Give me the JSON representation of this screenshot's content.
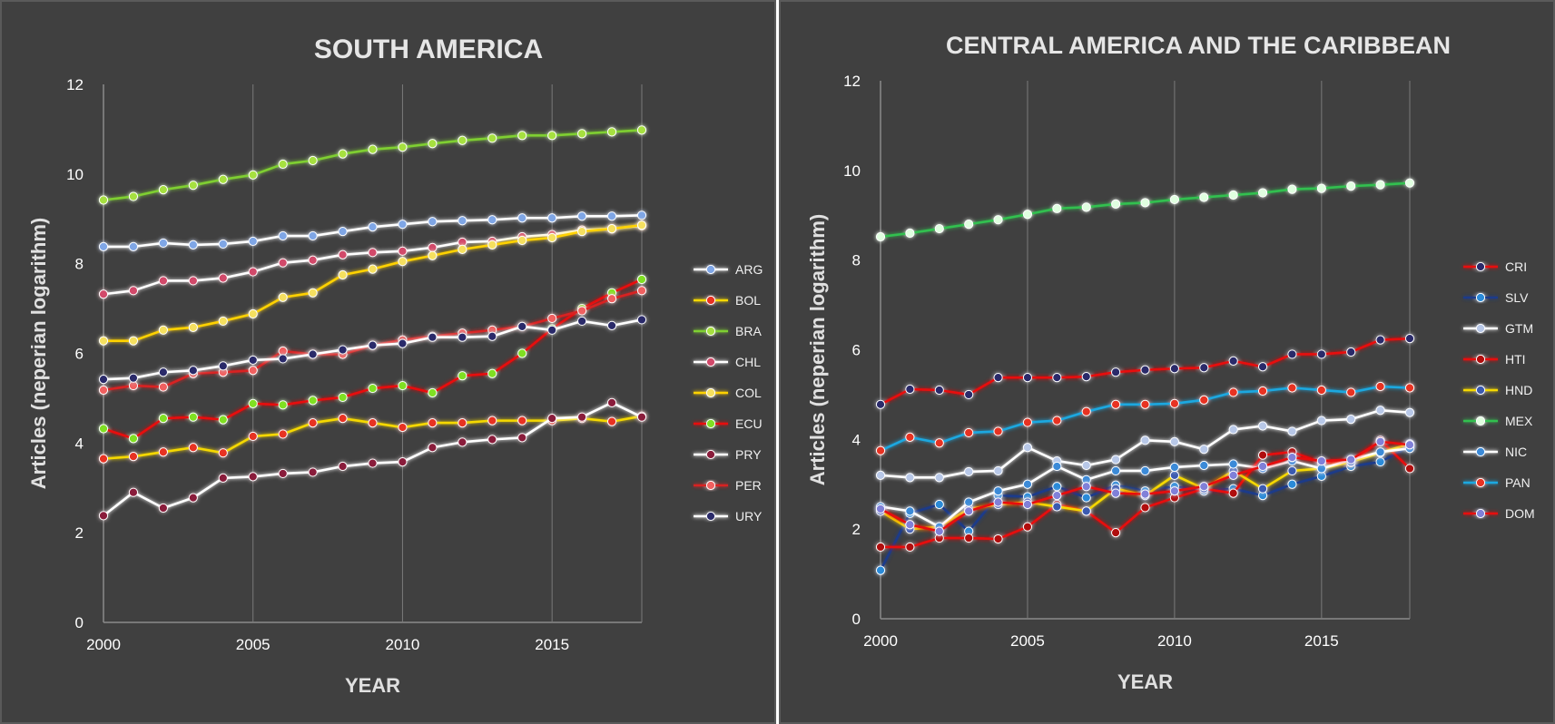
{
  "chart_data": [
    {
      "type": "line",
      "title": "SOUTH AMERICA",
      "xlabel": "YEAR",
      "ylabel": "Articles (neperian logarithm)",
      "x": [
        2000,
        2001,
        2002,
        2003,
        2004,
        2005,
        2006,
        2007,
        2008,
        2009,
        2010,
        2011,
        2012,
        2013,
        2014,
        2015,
        2016,
        2017,
        2018
      ],
      "xticks": [
        "2000",
        "2005",
        "2010",
        "2015"
      ],
      "yticks": [
        "0",
        "2",
        "4",
        "6",
        "8",
        "10",
        "12"
      ],
      "xlim": [
        2000,
        2018
      ],
      "ylim": [
        0,
        12
      ],
      "grid": "vertical",
      "legend": "right",
      "series": [
        {
          "name": "ARG",
          "line_color": "#ffffff",
          "marker_color": "#7fa6e6",
          "values": [
            8.38,
            8.38,
            8.46,
            8.42,
            8.44,
            8.5,
            8.62,
            8.62,
            8.72,
            8.82,
            8.88,
            8.94,
            8.96,
            8.98,
            9.02,
            9.02,
            9.06,
            9.06,
            9.08
          ]
        },
        {
          "name": "BOL",
          "line_color": "#f5d800",
          "marker_color": "#e83020",
          "values": [
            3.65,
            3.7,
            3.8,
            3.9,
            3.78,
            4.15,
            4.2,
            4.45,
            4.55,
            4.45,
            4.35,
            4.45,
            4.45,
            4.5,
            4.5,
            4.5,
            4.55,
            4.48,
            4.6
          ]
        },
        {
          "name": "BRA",
          "line_color": "#7fcf30",
          "marker_color": "#a6e040",
          "values": [
            9.42,
            9.5,
            9.65,
            9.75,
            9.88,
            9.98,
            10.22,
            10.3,
            10.45,
            10.55,
            10.6,
            10.68,
            10.75,
            10.8,
            10.86,
            10.86,
            10.9,
            10.94,
            10.98
          ]
        },
        {
          "name": "CHL",
          "line_color": "#ffffff",
          "marker_color": "#d24a6a",
          "values": [
            7.32,
            7.4,
            7.62,
            7.62,
            7.68,
            7.82,
            8.02,
            8.08,
            8.2,
            8.25,
            8.28,
            8.36,
            8.48,
            8.5,
            8.6,
            8.65,
            8.75,
            8.78,
            8.85
          ]
        },
        {
          "name": "COL",
          "line_color": "#ffd200",
          "marker_color": "#f5e060",
          "values": [
            6.28,
            6.28,
            6.52,
            6.58,
            6.72,
            6.88,
            7.25,
            7.35,
            7.75,
            7.88,
            8.05,
            8.18,
            8.32,
            8.42,
            8.52,
            8.58,
            8.72,
            8.78,
            8.86
          ]
        },
        {
          "name": "ECU",
          "line_color": "#e81010",
          "marker_color": "#7fe020",
          "values": [
            4.32,
            4.1,
            4.55,
            4.58,
            4.52,
            4.88,
            4.85,
            4.95,
            5.02,
            5.22,
            5.28,
            5.12,
            5.5,
            5.55,
            6.0,
            6.55,
            7.0,
            7.35,
            7.65
          ]
        },
        {
          "name": "PRY",
          "line_color": "#ffffff",
          "marker_color": "#8a1a3a",
          "values": [
            2.38,
            2.9,
            2.55,
            2.78,
            3.22,
            3.25,
            3.32,
            3.35,
            3.48,
            3.55,
            3.58,
            3.9,
            4.02,
            4.08,
            4.12,
            4.55,
            4.58,
            4.9,
            4.58
          ]
        },
        {
          "name": "PER",
          "line_color": "#d82020",
          "marker_color": "#f06060",
          "values": [
            5.18,
            5.28,
            5.25,
            5.55,
            5.58,
            5.62,
            6.05,
            5.98,
            5.98,
            6.18,
            6.3,
            6.38,
            6.45,
            6.52,
            6.6,
            6.78,
            6.95,
            7.22,
            7.4
          ]
        },
        {
          "name": "URY",
          "line_color": "#ffffff",
          "marker_color": "#2a2a6a",
          "values": [
            5.42,
            5.45,
            5.58,
            5.62,
            5.72,
            5.85,
            5.88,
            5.98,
            6.08,
            6.18,
            6.22,
            6.36,
            6.36,
            6.38,
            6.6,
            6.52,
            6.72,
            6.62,
            6.75
          ]
        }
      ]
    },
    {
      "type": "line",
      "title": "CENTRAL AMERICA AND THE CARIBBEAN",
      "xlabel": "YEAR",
      "ylabel": "Articles (neperian logarithm)",
      "x": [
        2000,
        2001,
        2002,
        2003,
        2004,
        2005,
        2006,
        2007,
        2008,
        2009,
        2010,
        2011,
        2012,
        2013,
        2014,
        2015,
        2016,
        2017,
        2018
      ],
      "xticks": [
        "2000",
        "2005",
        "2010",
        "2015"
      ],
      "yticks": [
        "0",
        "2",
        "4",
        "6",
        "8",
        "10",
        "12"
      ],
      "xlim": [
        2000,
        2018
      ],
      "ylim": [
        0,
        12
      ],
      "grid": "vertical",
      "legend": "right",
      "series": [
        {
          "name": "CRI",
          "line_color": "#e81010",
          "marker_color": "#2a2a6a",
          "values": [
            4.78,
            5.12,
            5.1,
            5.0,
            5.38,
            5.38,
            5.38,
            5.4,
            5.5,
            5.55,
            5.58,
            5.6,
            5.75,
            5.62,
            5.9,
            5.9,
            5.95,
            6.22,
            6.25
          ]
        },
        {
          "name": "SLV",
          "line_color": "#1a3a8a",
          "marker_color": "#2a8ad8",
          "values": [
            1.08,
            2.35,
            2.55,
            1.95,
            2.75,
            2.72,
            2.95,
            2.7,
            2.98,
            2.85,
            2.95,
            2.85,
            2.9,
            2.75,
            3.0,
            3.18,
            3.4,
            3.5,
            3.85
          ]
        },
        {
          "name": "GTM",
          "line_color": "#ffffff",
          "marker_color": "#b8c8e8",
          "values": [
            3.2,
            3.15,
            3.15,
            3.28,
            3.3,
            3.82,
            3.52,
            3.42,
            3.55,
            3.98,
            3.95,
            3.78,
            4.22,
            4.3,
            4.18,
            4.42,
            4.45,
            4.65,
            4.6
          ]
        },
        {
          "name": "HTI",
          "line_color": "#e81010",
          "marker_color": "#b01010",
          "values": [
            1.6,
            1.6,
            1.8,
            1.8,
            1.78,
            2.05,
            2.55,
            2.4,
            1.92,
            2.48,
            2.7,
            2.9,
            2.8,
            3.65,
            3.72,
            3.48,
            3.48,
            3.98,
            3.35
          ]
        },
        {
          "name": "HND",
          "line_color": "#f5d800",
          "marker_color": "#3a5ab0",
          "values": [
            2.4,
            2.0,
            2.05,
            2.45,
            2.55,
            2.6,
            2.5,
            2.4,
            2.9,
            2.75,
            3.2,
            2.9,
            3.3,
            2.9,
            3.3,
            3.35,
            3.5,
            3.7,
            3.9
          ]
        },
        {
          "name": "MEX",
          "line_color": "#30c050",
          "marker_color": "#e0ffe0",
          "values": [
            8.52,
            8.6,
            8.7,
            8.8,
            8.9,
            9.02,
            9.15,
            9.18,
            9.25,
            9.28,
            9.35,
            9.4,
            9.45,
            9.5,
            9.58,
            9.6,
            9.65,
            9.68,
            9.72
          ]
        },
        {
          "name": "NIC",
          "line_color": "#ffffff",
          "marker_color": "#3a8ad8",
          "values": [
            2.5,
            2.4,
            2.05,
            2.6,
            2.85,
            3.0,
            3.4,
            3.1,
            3.3,
            3.3,
            3.38,
            3.42,
            3.45,
            3.35,
            3.52,
            3.35,
            3.55,
            3.72,
            3.8
          ]
        },
        {
          "name": "PAN",
          "line_color": "#1aa8e0",
          "marker_color": "#e83020",
          "values": [
            3.75,
            4.05,
            3.92,
            4.15,
            4.18,
            4.38,
            4.42,
            4.62,
            4.78,
            4.78,
            4.8,
            4.88,
            5.05,
            5.08,
            5.15,
            5.1,
            5.05,
            5.18,
            5.15
          ]
        },
        {
          "name": "DOM",
          "line_color": "#e81010",
          "marker_color": "#8080d8",
          "values": [
            2.45,
            2.1,
            1.95,
            2.4,
            2.6,
            2.55,
            2.75,
            2.95,
            2.8,
            2.78,
            2.85,
            2.95,
            3.2,
            3.4,
            3.6,
            3.52,
            3.55,
            3.95,
            3.88
          ]
        }
      ]
    }
  ]
}
